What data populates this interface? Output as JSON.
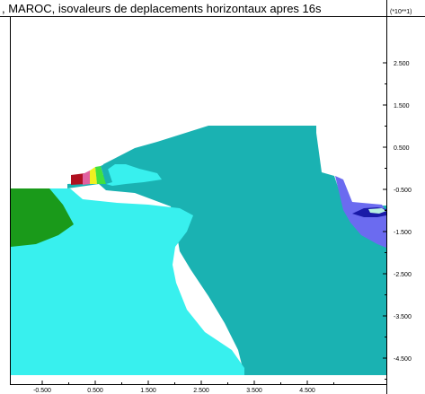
{
  "title": ", MAROC, isovaleurs de deplacements horizontaux apres 16s",
  "unit_label": "(*10**1)",
  "y_ticks": [
    "2.500",
    "1.500",
    "0.500",
    "-0.500",
    "-1.500",
    "-2.500",
    "-3.500",
    "-4.500"
  ],
  "x_ticks": [
    "-0.500",
    "0.500",
    "1.500",
    "2.500",
    "3.500",
    "4.500"
  ],
  "colors": {
    "teal": "#1ab2b2",
    "cyan": "#38f0ee",
    "green": "#1a9a1a",
    "blue": "#6b6bf0",
    "dark_blue": "#1a1aa8",
    "red": "#b01020",
    "pink": "#e060a0",
    "yellow": "#f0f020",
    "lime": "#40e040",
    "sea": "#b8f0e0"
  }
}
